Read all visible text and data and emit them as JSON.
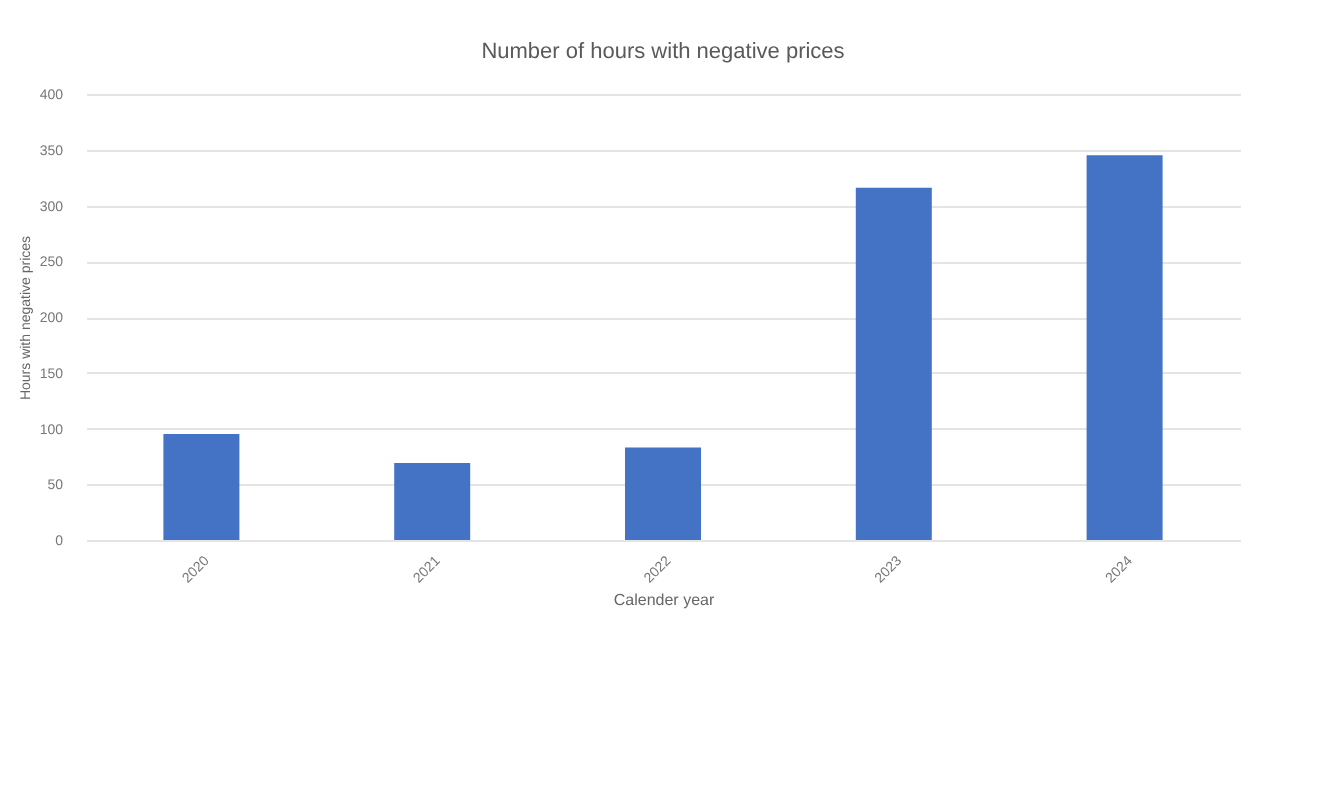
{
  "chart_data": {
    "type": "bar",
    "title": "Number of hours with negative prices",
    "xlabel": "Calender year",
    "ylabel": "Hours with negative prices",
    "categories": [
      "2020",
      "2021",
      "2022",
      "2023",
      "2024"
    ],
    "values": [
      95,
      69,
      83,
      316,
      345
    ],
    "color": "#4472c4",
    "ylim": [
      0,
      400
    ],
    "yticks": [
      0,
      50,
      100,
      150,
      200,
      250,
      300,
      350,
      400
    ],
    "grid": "y"
  }
}
